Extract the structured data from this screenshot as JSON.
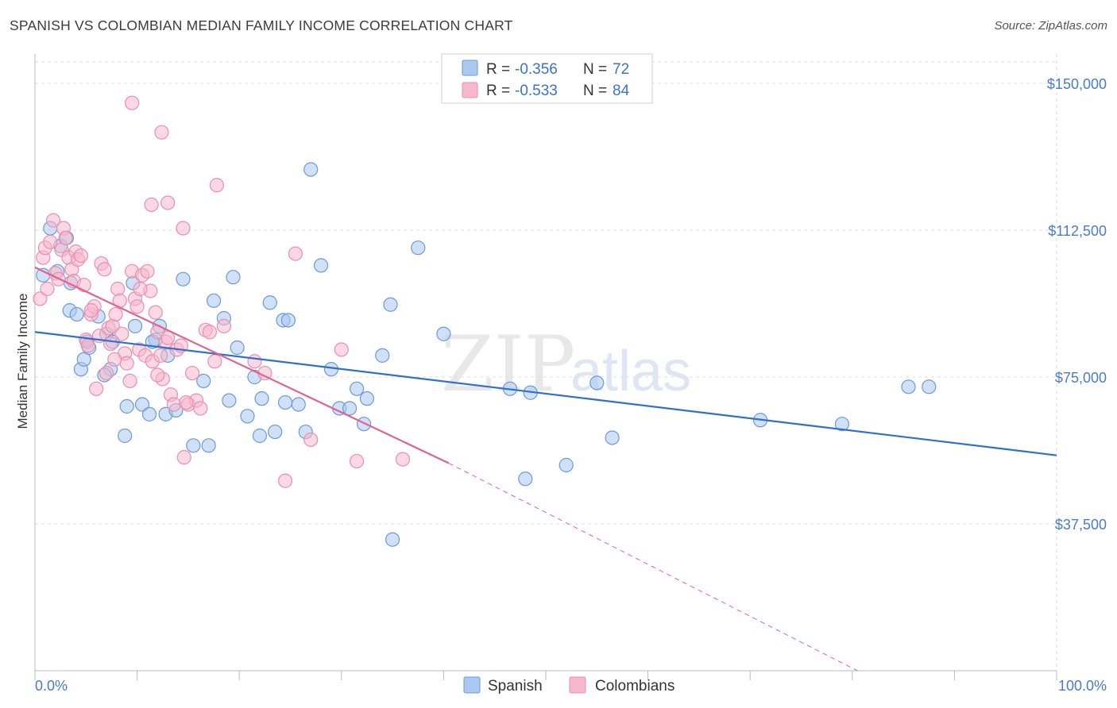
{
  "title": "SPANISH VS COLOMBIAN MEDIAN FAMILY INCOME CORRELATION CHART",
  "source": "Source: ZipAtlas.com",
  "colors": {
    "spanish_fill": "#aac8f0",
    "spanish_stroke": "#6b9ad8",
    "spanish_line": "#2f6fd0",
    "colombian_fill": "#f7b8cc",
    "colombian_stroke": "#e890ad",
    "colombian_line": "#e0648e",
    "grid": "#dddddd",
    "tick_label": "#4a7cc6"
  },
  "legend": {
    "rows": [
      {
        "r_label": "R = ",
        "r_value": "-0.356",
        "n_label": "N = ",
        "n_value": "72"
      },
      {
        "r_label": "R = ",
        "r_value": "-0.533",
        "n_label": "N = ",
        "n_value": "84"
      }
    ]
  },
  "watermark": {
    "zip": "ZIP",
    "atlas": "atlas"
  },
  "chart_data": {
    "type": "scatter",
    "title": "SPANISH VS COLOMBIAN MEDIAN FAMILY INCOME CORRELATION CHART",
    "xlabel": "",
    "ylabel": "Median Family Income",
    "xlim": [
      0,
      100
    ],
    "ylim": [
      0,
      157500
    ],
    "x_tick_labels": [
      "0.0%",
      "100.0%"
    ],
    "y_ticks": [
      37500,
      75000,
      112500,
      150000
    ],
    "y_tick_labels": [
      "$37,500",
      "$75,000",
      "$112,500",
      "$150,000"
    ],
    "grid": true,
    "legend_position": "top-center",
    "series": [
      {
        "name": "Spanish",
        "r": -0.356,
        "n": 72,
        "trend": {
          "x": [
            0,
            100
          ],
          "y": [
            86500,
            55000
          ]
        },
        "points": [
          [
            0.8,
            101000
          ],
          [
            1.5,
            113000
          ],
          [
            2.5,
            108500
          ],
          [
            2.2,
            102000
          ],
          [
            3.1,
            110500
          ],
          [
            5.1,
            84000
          ],
          [
            3.5,
            99000
          ],
          [
            3.4,
            92000
          ],
          [
            4.1,
            91000
          ],
          [
            6.2,
            90500
          ],
          [
            4.5,
            77000
          ],
          [
            4.8,
            79500
          ],
          [
            5.3,
            82500
          ],
          [
            7.0,
            86000
          ],
          [
            7.6,
            84000
          ],
          [
            9.6,
            99000
          ],
          [
            9.8,
            88000
          ],
          [
            12.2,
            88000
          ],
          [
            11.8,
            84500
          ],
          [
            11.5,
            84000
          ],
          [
            7.4,
            77000
          ],
          [
            6.8,
            75500
          ],
          [
            9.0,
            67500
          ],
          [
            10.5,
            68000
          ],
          [
            11.2,
            65500
          ],
          [
            8.8,
            60000
          ],
          [
            12.8,
            65500
          ],
          [
            13.8,
            66500
          ],
          [
            14.5,
            100000
          ],
          [
            16.5,
            74000
          ],
          [
            17.5,
            94500
          ],
          [
            18.5,
            90000
          ],
          [
            19.0,
            69000
          ],
          [
            19.4,
            100500
          ],
          [
            19.8,
            82500
          ],
          [
            20.8,
            65000
          ],
          [
            21.5,
            75000
          ],
          [
            22.0,
            60000
          ],
          [
            22.2,
            69500
          ],
          [
            23.0,
            94000
          ],
          [
            23.5,
            61000
          ],
          [
            24.3,
            89500
          ],
          [
            24.8,
            89500
          ],
          [
            24.5,
            68500
          ],
          [
            25.8,
            68000
          ],
          [
            26.5,
            61000
          ],
          [
            27.0,
            128000
          ],
          [
            28.0,
            103500
          ],
          [
            29.0,
            77000
          ],
          [
            29.8,
            67000
          ],
          [
            30.8,
            67000
          ],
          [
            31.5,
            72000
          ],
          [
            32.2,
            63000
          ],
          [
            32.5,
            69500
          ],
          [
            34.0,
            80500
          ],
          [
            34.8,
            93500
          ],
          [
            35.0,
            33500
          ],
          [
            37.5,
            108000
          ],
          [
            40.0,
            86000
          ],
          [
            46.5,
            72000
          ],
          [
            48.5,
            71000
          ],
          [
            48.0,
            49000
          ],
          [
            52.0,
            52500
          ],
          [
            55.0,
            73500
          ],
          [
            56.5,
            59500
          ],
          [
            71.0,
            64000
          ],
          [
            79.0,
            63000
          ],
          [
            85.5,
            72500
          ],
          [
            87.5,
            72500
          ],
          [
            13.0,
            80500
          ],
          [
            17.0,
            57500
          ],
          [
            15.5,
            57500
          ]
        ]
      },
      {
        "name": "Colombians",
        "r": -0.533,
        "n": 84,
        "trend": {
          "x": [
            0,
            40.5
          ],
          "y": [
            103000,
            53000
          ]
        },
        "trend_dashed": {
          "x": [
            40.5,
            80.5
          ],
          "y": [
            53000,
            0
          ]
        },
        "points": [
          [
            0.5,
            95000
          ],
          [
            0.8,
            105500
          ],
          [
            1.0,
            108000
          ],
          [
            1.2,
            97500
          ],
          [
            1.5,
            109500
          ],
          [
            1.8,
            115000
          ],
          [
            2.0,
            101500
          ],
          [
            2.3,
            100000
          ],
          [
            2.6,
            107500
          ],
          [
            2.8,
            113000
          ],
          [
            3.0,
            110500
          ],
          [
            3.3,
            105500
          ],
          [
            3.6,
            102500
          ],
          [
            3.8,
            99500
          ],
          [
            4.0,
            107000
          ],
          [
            4.2,
            105000
          ],
          [
            4.5,
            106000
          ],
          [
            4.8,
            98500
          ],
          [
            5.0,
            84500
          ],
          [
            5.2,
            83000
          ],
          [
            5.5,
            91000
          ],
          [
            5.8,
            93000
          ],
          [
            6.0,
            72000
          ],
          [
            6.3,
            85500
          ],
          [
            6.5,
            104000
          ],
          [
            6.8,
            102500
          ],
          [
            7.0,
            76000
          ],
          [
            7.2,
            87500
          ],
          [
            7.4,
            83500
          ],
          [
            7.6,
            88000
          ],
          [
            7.9,
            91000
          ],
          [
            8.1,
            97500
          ],
          [
            8.3,
            94500
          ],
          [
            8.5,
            86000
          ],
          [
            8.8,
            81000
          ],
          [
            9.0,
            78500
          ],
          [
            9.3,
            74000
          ],
          [
            9.5,
            102000
          ],
          [
            9.8,
            95000
          ],
          [
            10.0,
            93000
          ],
          [
            10.2,
            82000
          ],
          [
            10.5,
            101000
          ],
          [
            10.8,
            80500
          ],
          [
            11.0,
            102000
          ],
          [
            11.3,
            97000
          ],
          [
            11.5,
            79000
          ],
          [
            11.8,
            91500
          ],
          [
            12.0,
            86500
          ],
          [
            12.3,
            80500
          ],
          [
            12.5,
            74500
          ],
          [
            12.8,
            84000
          ],
          [
            13.0,
            85000
          ],
          [
            13.3,
            70500
          ],
          [
            13.6,
            68000
          ],
          [
            13.9,
            82000
          ],
          [
            14.3,
            83000
          ],
          [
            14.6,
            54500
          ],
          [
            15.0,
            68000
          ],
          [
            15.4,
            76000
          ],
          [
            15.8,
            69000
          ],
          [
            16.2,
            67000
          ],
          [
            16.7,
            87000
          ],
          [
            17.1,
            86500
          ],
          [
            17.6,
            79000
          ],
          [
            9.5,
            145000
          ],
          [
            11.4,
            119000
          ],
          [
            12.4,
            137500
          ],
          [
            13.0,
            119500
          ],
          [
            14.5,
            113000
          ],
          [
            17.8,
            124000
          ],
          [
            18.5,
            88000
          ],
          [
            21.5,
            79000
          ],
          [
            22.5,
            76000
          ],
          [
            24.5,
            48500
          ],
          [
            25.5,
            106500
          ],
          [
            27.0,
            59000
          ],
          [
            30.0,
            82000
          ],
          [
            31.5,
            53500
          ],
          [
            36.0,
            54000
          ],
          [
            5.5,
            92000
          ],
          [
            7.8,
            79500
          ],
          [
            10.3,
            97500
          ],
          [
            14.8,
            68500
          ],
          [
            12.0,
            75500
          ]
        ]
      }
    ]
  }
}
